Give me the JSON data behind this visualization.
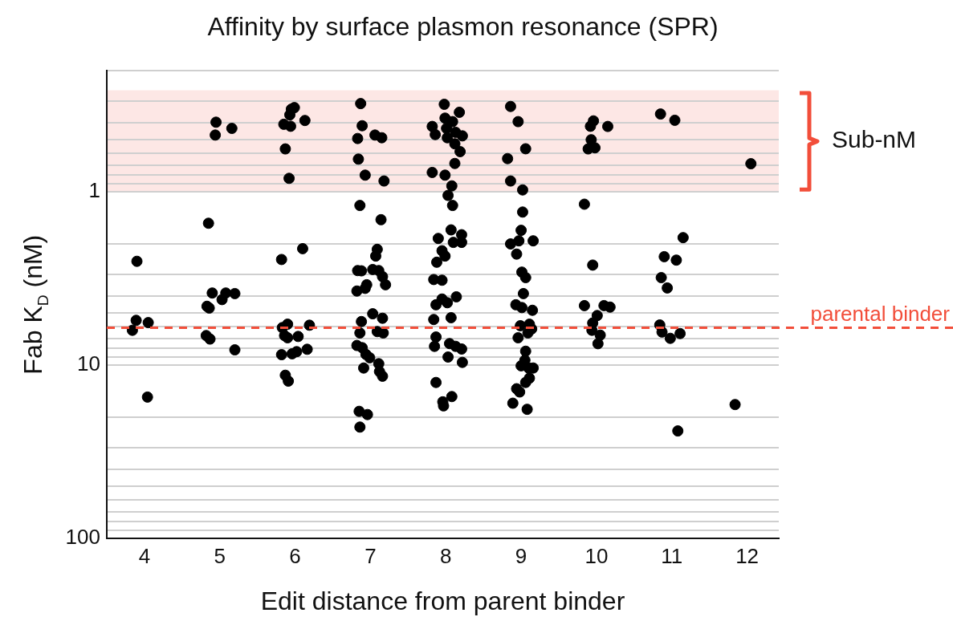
{
  "chart_data": {
    "type": "scatter",
    "title": "Affinity by surface plasmon resonance (SPR)",
    "xlabel": "Edit distance from parent binder",
    "ylabel": "Fab K$_{D}$ (nM)",
    "x": [
      3.9,
      3.89,
      4.05,
      3.84,
      4.04,
      4.95,
      5.16,
      4.94,
      4.85,
      4.9,
      5.08,
      5.2,
      5.03,
      4.83,
      4.86,
      4.82,
      4.87,
      5.2,
      5.99,
      5.95,
      5.93,
      5.85,
      5.94,
      6.13,
      5.87,
      5.92,
      6.1,
      5.82,
      5.9,
      6.19,
      5.83,
      5.86,
      5.9,
      6.04,
      6.16,
      6.02,
      5.96,
      5.82,
      5.87,
      5.91,
      6.87,
      6.89,
      6.83,
      7.06,
      7.15,
      6.84,
      6.93,
      7.18,
      6.86,
      7.14,
      7.09,
      7.07,
      6.83,
      6.88,
      7.03,
      7.11,
      7.16,
      7.2,
      6.95,
      6.93,
      6.82,
      7.03,
      7.16,
      6.88,
      6.86,
      7.09,
      7.17,
      6.82,
      6.89,
      6.94,
      6.99,
      6.91,
      7.11,
      7.12,
      7.16,
      6.85,
      6.96,
      6.86,
      7.98,
      8.18,
      7.99,
      8.09,
      7.82,
      8.01,
      7.86,
      8.02,
      8.13,
      8.22,
      8.12,
      8.19,
      8.12,
      7.82,
      7.99,
      8.08,
      8.03,
      8.09,
      8.07,
      8.21,
      7.9,
      8.1,
      8.21,
      7.95,
      7.99,
      7.88,
      7.84,
      7.95,
      8.14,
      7.95,
      8.02,
      7.87,
      8.07,
      7.84,
      7.87,
      7.85,
      8.05,
      8.13,
      8.21,
      8.03,
      8.22,
      7.87,
      8.08,
      7.96,
      7.97,
      8.86,
      8.96,
      9.06,
      8.82,
      8.86,
      9.02,
      9.02,
      9.0,
      8.97,
      9.16,
      8.86,
      8.94,
      9.01,
      9.06,
      9.03,
      8.93,
      9.01,
      9.15,
      8.99,
      9.11,
      9.14,
      9.09,
      8.96,
      9.06,
      9.05,
      9.0,
      9.1,
      9.16,
      9.11,
      9.06,
      8.94,
      8.98,
      8.89,
      9.08,
      9.96,
      9.92,
      10.15,
      9.93,
      9.89,
      9.98,
      9.84,
      9.95,
      9.84,
      10.1,
      10.18,
      10.01,
      9.95,
      9.94,
      10.05,
      10.02,
      10.85,
      11.04,
      11.15,
      10.9,
      11.06,
      10.86,
      10.94,
      10.84,
      10.87,
      10.98,
      11.11,
      11.08,
      12.05,
      11.84
    ],
    "values": [
      2.52,
      5.52,
      5.69,
      6.3,
      15.3,
      0.397,
      0.431,
      0.471,
      1.52,
      3.84,
      3.84,
      3.87,
      4.19,
      4.58,
      4.69,
      6.76,
      7.08,
      8.17,
      0.327,
      0.334,
      0.36,
      0.408,
      0.419,
      0.388,
      0.566,
      0.837,
      2.13,
      2.46,
      5.81,
      5.89,
      6.08,
      6.76,
      6.96,
      6.84,
      8.11,
      8.37,
      8.61,
      8.71,
      11.45,
      12.38,
      0.31,
      0.416,
      0.493,
      0.471,
      0.488,
      0.648,
      0.802,
      0.867,
      1.2,
      1.45,
      2.15,
      2.35,
      2.85,
      2.86,
      2.81,
      2.85,
      3.09,
      3.44,
      3.44,
      3.61,
      3.74,
      5.06,
      5.37,
      5.61,
      6.53,
      6.41,
      6.53,
      7.71,
      7.94,
      8.68,
      9.08,
      10.4,
      9.82,
      10.9,
      11.6,
      18.5,
      19.3,
      22.8,
      0.313,
      0.348,
      0.376,
      0.394,
      0.42,
      0.431,
      0.468,
      0.488,
      0.454,
      0.476,
      0.529,
      0.587,
      0.687,
      0.774,
      0.802,
      0.925,
      1.05,
      1.2,
      1.66,
      1.77,
      1.86,
      1.96,
      1.96,
      2.19,
      2.35,
      2.55,
      3.21,
      3.24,
      4.04,
      4.16,
      4.37,
      4.49,
      5.33,
      5.46,
      6.89,
      7.8,
      7.52,
      7.8,
      8.08,
      8.99,
      9.65,
      12.6,
      15.2,
      16.3,
      17.2,
      0.322,
      0.394,
      0.565,
      0.644,
      0.867,
      0.976,
      1.31,
      1.67,
      1.92,
      1.92,
      2.0,
      2.29,
      2.91,
      3.13,
      3.87,
      4.49,
      4.66,
      4.83,
      5.93,
      5.81,
      6.19,
      6.53,
      6.96,
      8.32,
      9.38,
      10.1,
      10.4,
      10.4,
      11.9,
      12.6,
      13.7,
      14.3,
      16.6,
      18.0,
      0.39,
      0.419,
      0.42,
      0.501,
      0.566,
      0.558,
      1.18,
      2.65,
      4.54,
      4.54,
      4.63,
      5.18,
      5.72,
      6.3,
      6.72,
      7.53,
      0.356,
      0.387,
      1.84,
      2.37,
      2.48,
      3.13,
      3.59,
      5.87,
      6.45,
      7.01,
      6.58,
      24.0,
      0.689,
      16.9
    ],
    "color": "#000000",
    "marker": "circle",
    "log": "y",
    "ylim": [
      100,
      0.2
    ],
    "yticks": [
      {
        "value": 0.2,
        "label": null
      },
      {
        "value": 0.3,
        "label": null
      },
      {
        "value": 0.4,
        "label": null
      },
      {
        "value": 0.5,
        "label": null
      },
      {
        "value": 0.6,
        "label": null
      },
      {
        "value": 0.7,
        "label": null
      },
      {
        "value": 0.8,
        "label": null
      },
      {
        "value": 0.9,
        "label": null
      },
      1,
      {
        "value": 2,
        "label": null
      },
      {
        "value": 3,
        "label": null
      },
      {
        "value": 4,
        "label": null
      },
      {
        "value": 5,
        "label": null
      },
      {
        "value": 6,
        "label": null
      },
      {
        "value": 7,
        "label": null
      },
      {
        "value": 8,
        "label": null
      },
      {
        "value": 9,
        "label": null
      },
      10,
      {
        "value": 20,
        "label": null
      },
      {
        "value": 30,
        "label": null
      },
      {
        "value": 40,
        "label": null
      },
      {
        "value": 50,
        "label": null
      },
      {
        "value": 60,
        "label": null
      },
      {
        "value": 70,
        "label": null
      },
      {
        "value": 80,
        "label": null
      },
      {
        "value": 90,
        "label": null
      },
      100
    ],
    "xlim": [
      3.5,
      12.42
    ],
    "xticks": [
      4,
      5,
      6,
      7,
      8,
      9,
      10,
      11,
      12
    ],
    "grid": "y",
    "bands": [
      {
        "axis": "y",
        "from": 1,
        "to": 0.26,
        "label": "Sub-nM",
        "color": "#fde7e5"
      }
    ],
    "ref_lines": [
      {
        "axis": "y",
        "value": 6.1,
        "label": "parental binder",
        "color": "#f24e3a",
        "line_style": "dashed"
      }
    ]
  }
}
